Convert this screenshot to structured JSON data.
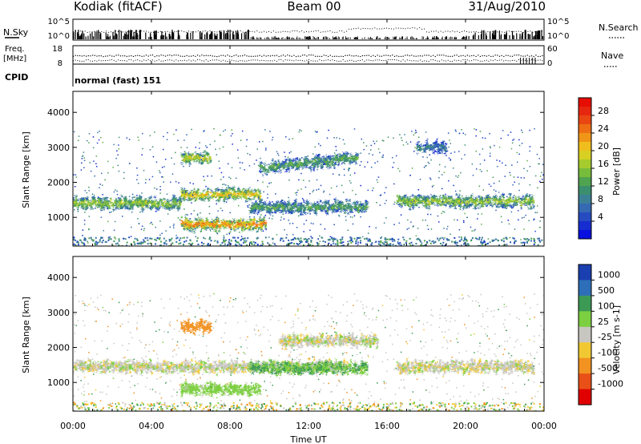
{
  "header": {
    "station": "Kodiak (fitACF)",
    "beam": "Beam 00",
    "date": "31/Aug/2010"
  },
  "noise_panel": {
    "left_label": "N.Sky",
    "right_label": "N.Search",
    "ticks_left": [
      "10^5",
      "10^0"
    ],
    "ticks_right": [
      "10^5",
      "10^0"
    ]
  },
  "freq_panel": {
    "left_label_1": "Freq.",
    "left_label_2": "[MHz]",
    "right_label": "Nave",
    "ticks_left": [
      "18",
      "8"
    ],
    "ticks_right": [
      "60",
      "0"
    ]
  },
  "cpid": {
    "label": "CPID",
    "value": "normal (fast) 151"
  },
  "x_axis": {
    "title": "Time UT",
    "ticks": [
      "00:00",
      "04:00",
      "08:00",
      "12:00",
      "16:00",
      "20:00",
      "00:00"
    ]
  },
  "chart_data": [
    {
      "type": "heatmap",
      "title": "",
      "xlabel": "Time UT",
      "ylabel": "Slant Range [km]",
      "xlim": [
        0,
        24
      ],
      "ylim": [
        180,
        4600
      ],
      "y_ticks": [
        1000,
        2000,
        3000,
        4000
      ],
      "colorbar": {
        "label": "Power [dB]",
        "ticks": [
          "28",
          "24",
          "20",
          "16",
          "12",
          "8",
          "4"
        ],
        "range": [
          0,
          32
        ]
      },
      "echo_regions": [
        {
          "t_start": 0.0,
          "t_end": 5.5,
          "range_km": 1400,
          "value": 18
        },
        {
          "t_start": 5.5,
          "t_end": 9.5,
          "range_km": 1650,
          "value": 22
        },
        {
          "t_start": 9.5,
          "t_end": 14.5,
          "range_km": 2400,
          "value": 14
        },
        {
          "t_start": 5.5,
          "t_end": 9.8,
          "range_km": 800,
          "value": 26
        },
        {
          "t_start": 9.0,
          "t_end": 15.0,
          "range_km": 1300,
          "value": 14
        },
        {
          "t_start": 16.5,
          "t_end": 23.5,
          "range_km": 1450,
          "value": 18
        },
        {
          "t_start": 5.5,
          "t_end": 7.0,
          "range_km": 2700,
          "value": 20
        },
        {
          "t_start": 17.5,
          "t_end": 19.0,
          "range_km": 3000,
          "value": 10
        }
      ]
    },
    {
      "type": "heatmap",
      "title": "",
      "xlabel": "Time UT",
      "ylabel": "Slant Range [km]",
      "xlim": [
        0,
        24
      ],
      "ylim": [
        180,
        4600
      ],
      "y_ticks": [
        1000,
        2000,
        3000,
        4000
      ],
      "colorbar": {
        "label": "Velocity [m s-1]",
        "ticks": [
          "1000",
          "500",
          "100",
          "25",
          "-25",
          "-100",
          "-500",
          "-1000"
        ]
      },
      "echo_regions": [
        {
          "t_start": 0.0,
          "t_end": 14.0,
          "range_km": 1450,
          "value": 0
        },
        {
          "t_start": 9.0,
          "t_end": 15.0,
          "range_km": 1400,
          "value": 100
        },
        {
          "t_start": 5.5,
          "t_end": 9.5,
          "range_km": 800,
          "value": 60
        },
        {
          "t_start": 10.5,
          "t_end": 15.5,
          "range_km": 2200,
          "value": 0
        },
        {
          "t_start": 5.5,
          "t_end": 7.0,
          "range_km": 2600,
          "value": -300
        },
        {
          "t_start": 16.5,
          "t_end": 23.5,
          "range_km": 1450,
          "value": 0
        }
      ]
    }
  ]
}
